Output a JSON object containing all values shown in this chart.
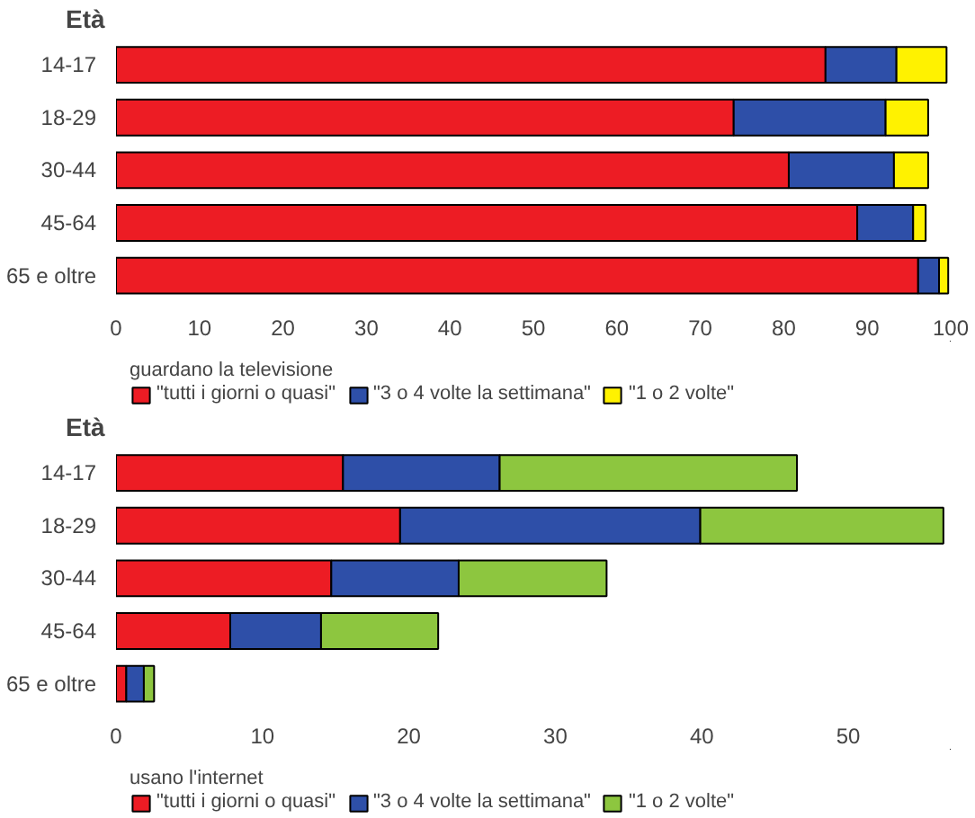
{
  "chart_data": [
    {
      "type": "bar",
      "orientation": "horizontal",
      "stacked": true,
      "ylabel": "Età",
      "legend_title": "guardano la televisione",
      "legend": "bottom",
      "categories": [
        "14-17",
        "18-29",
        "30-44",
        "45-64",
        "65 e oltre"
      ],
      "xlim": [
        0,
        100
      ],
      "xticks": [
        0,
        10,
        20,
        30,
        40,
        50,
        60,
        70,
        80,
        90,
        100
      ],
      "grid": false,
      "series": [
        {
          "name": "\"tutti i giorni o quasi\"",
          "color": "#ed1c24",
          "values": [
            85,
            74,
            80.6,
            88.8,
            96.1
          ]
        },
        {
          "name": "\"3 o 4 volte la settimana\"",
          "color": "#2e4fa8",
          "values": [
            8.5,
            18.2,
            12.6,
            6.7,
            2.5
          ]
        },
        {
          "name": "\"1 o 2 volte\"",
          "color": "#fff200",
          "values": [
            6,
            5.1,
            4.1,
            1.5,
            1.1
          ]
        }
      ]
    },
    {
      "type": "bar",
      "orientation": "horizontal",
      "stacked": true,
      "ylabel": "Età",
      "legend_title": "usano l'internet",
      "legend": "bottom",
      "categories": [
        "14-17",
        "18-29",
        "30-44",
        "45-64",
        "65 e oltre"
      ],
      "xlim": [
        0,
        57
      ],
      "xticks": [
        0,
        10,
        20,
        30,
        40,
        50
      ],
      "grid": false,
      "series": [
        {
          "name": "\"tutti i giorni o quasi\"",
          "color": "#ed1c24",
          "values": [
            15.5,
            19.4,
            14.7,
            7.8,
            0.7
          ]
        },
        {
          "name": "\"3 o 4 volte la settimana\"",
          "color": "#2e4fa8",
          "values": [
            10.7,
            20.5,
            8.7,
            6.2,
            1.2
          ]
        },
        {
          "name": "\"1 o 2 volte\"",
          "color": "#8dc63f",
          "values": [
            20.3,
            16.6,
            10.1,
            8.0,
            0.7
          ]
        }
      ]
    }
  ]
}
